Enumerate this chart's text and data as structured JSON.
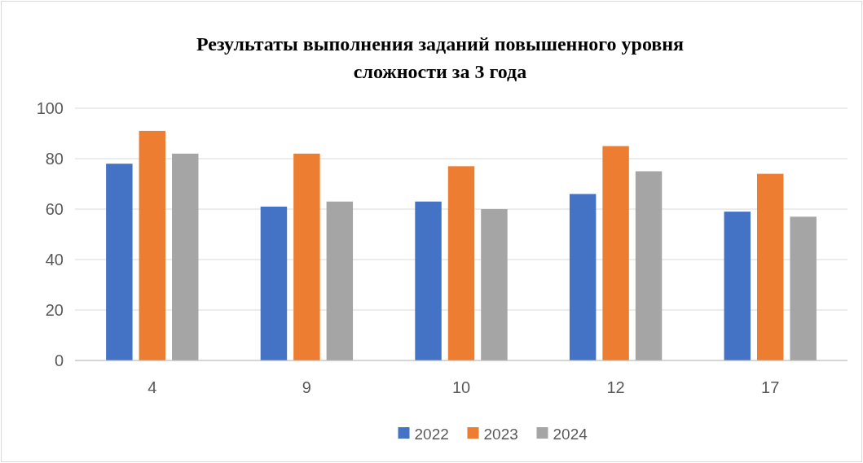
{
  "chart_data": {
    "type": "bar",
    "title": "Результаты выполнения заданий повышенного уровня\nсложности за 3 года",
    "categories": [
      "4",
      "9",
      "10",
      "12",
      "17"
    ],
    "series": [
      {
        "name": "2022",
        "color": "#4472c4",
        "values": [
          78,
          61,
          63,
          66,
          59
        ]
      },
      {
        "name": "2023",
        "color": "#ed7d31",
        "values": [
          91,
          82,
          77,
          85,
          74
        ]
      },
      {
        "name": "2024",
        "color": "#a5a5a5",
        "values": [
          82,
          63,
          60,
          75,
          57
        ]
      }
    ],
    "ylim": [
      0,
      100
    ],
    "yticks": [
      0,
      20,
      40,
      60,
      80,
      100
    ],
    "grid": "y",
    "legend": "bottom"
  }
}
